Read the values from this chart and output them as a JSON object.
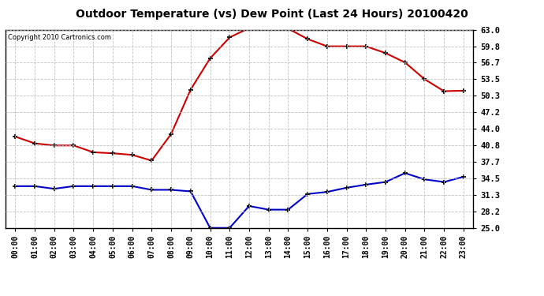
{
  "title": "Outdoor Temperature (vs) Dew Point (Last 24 Hours) 20100420",
  "copyright": "Copyright 2010 Cartronics.com",
  "x_labels": [
    "00:00",
    "01:00",
    "02:00",
    "03:00",
    "04:00",
    "05:00",
    "06:00",
    "07:00",
    "08:00",
    "09:00",
    "10:00",
    "11:00",
    "12:00",
    "13:00",
    "14:00",
    "15:00",
    "16:00",
    "17:00",
    "18:00",
    "19:00",
    "20:00",
    "21:00",
    "22:00",
    "23:00"
  ],
  "temp_data": [
    42.5,
    41.2,
    40.8,
    40.8,
    39.5,
    39.3,
    39.0,
    37.9,
    43.0,
    51.5,
    57.5,
    61.5,
    63.3,
    63.5,
    63.2,
    61.2,
    59.8,
    59.8,
    59.8,
    58.5,
    56.7,
    53.5,
    51.2,
    51.3
  ],
  "dew_data": [
    33.0,
    33.0,
    32.5,
    33.0,
    33.0,
    33.0,
    33.0,
    32.3,
    32.3,
    32.0,
    25.0,
    25.0,
    29.2,
    28.5,
    28.5,
    31.5,
    31.9,
    32.7,
    33.3,
    33.8,
    35.5,
    34.3,
    33.8,
    34.8
  ],
  "temp_color": "#cc0000",
  "dew_color": "#0000cc",
  "bg_color": "#ffffff",
  "plot_bg": "#ffffff",
  "grid_color": "#bbbbbb",
  "ytick_labels": [
    "25.0",
    "28.2",
    "31.3",
    "34.5",
    "37.7",
    "40.8",
    "44.0",
    "47.2",
    "50.3",
    "53.5",
    "56.7",
    "59.8",
    "63.0"
  ],
  "ytick_values": [
    25.0,
    28.2,
    31.3,
    34.5,
    37.7,
    40.8,
    44.0,
    47.2,
    50.3,
    53.5,
    56.7,
    59.8,
    63.0
  ],
  "ymin": 25.0,
  "ymax": 63.0
}
